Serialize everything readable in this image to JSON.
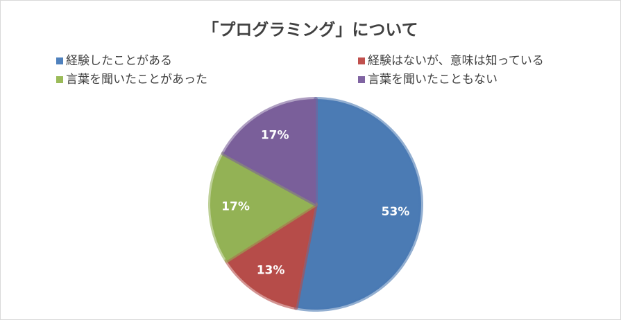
{
  "chart_data": {
    "type": "pie",
    "title": "「プログラミング」について",
    "categories": [
      "経験したことがある",
      "経験はないが、意味は知っている",
      "言葉を聞いたことがあった",
      "言葉を聞いたこともない"
    ],
    "values": [
      53,
      13,
      17,
      17
    ],
    "value_labels": [
      "53%",
      "13%",
      "17%",
      "17%"
    ],
    "colors": [
      "#4f81bd",
      "#c0504d",
      "#9bbb59",
      "#8064a2"
    ],
    "legend": "top"
  }
}
